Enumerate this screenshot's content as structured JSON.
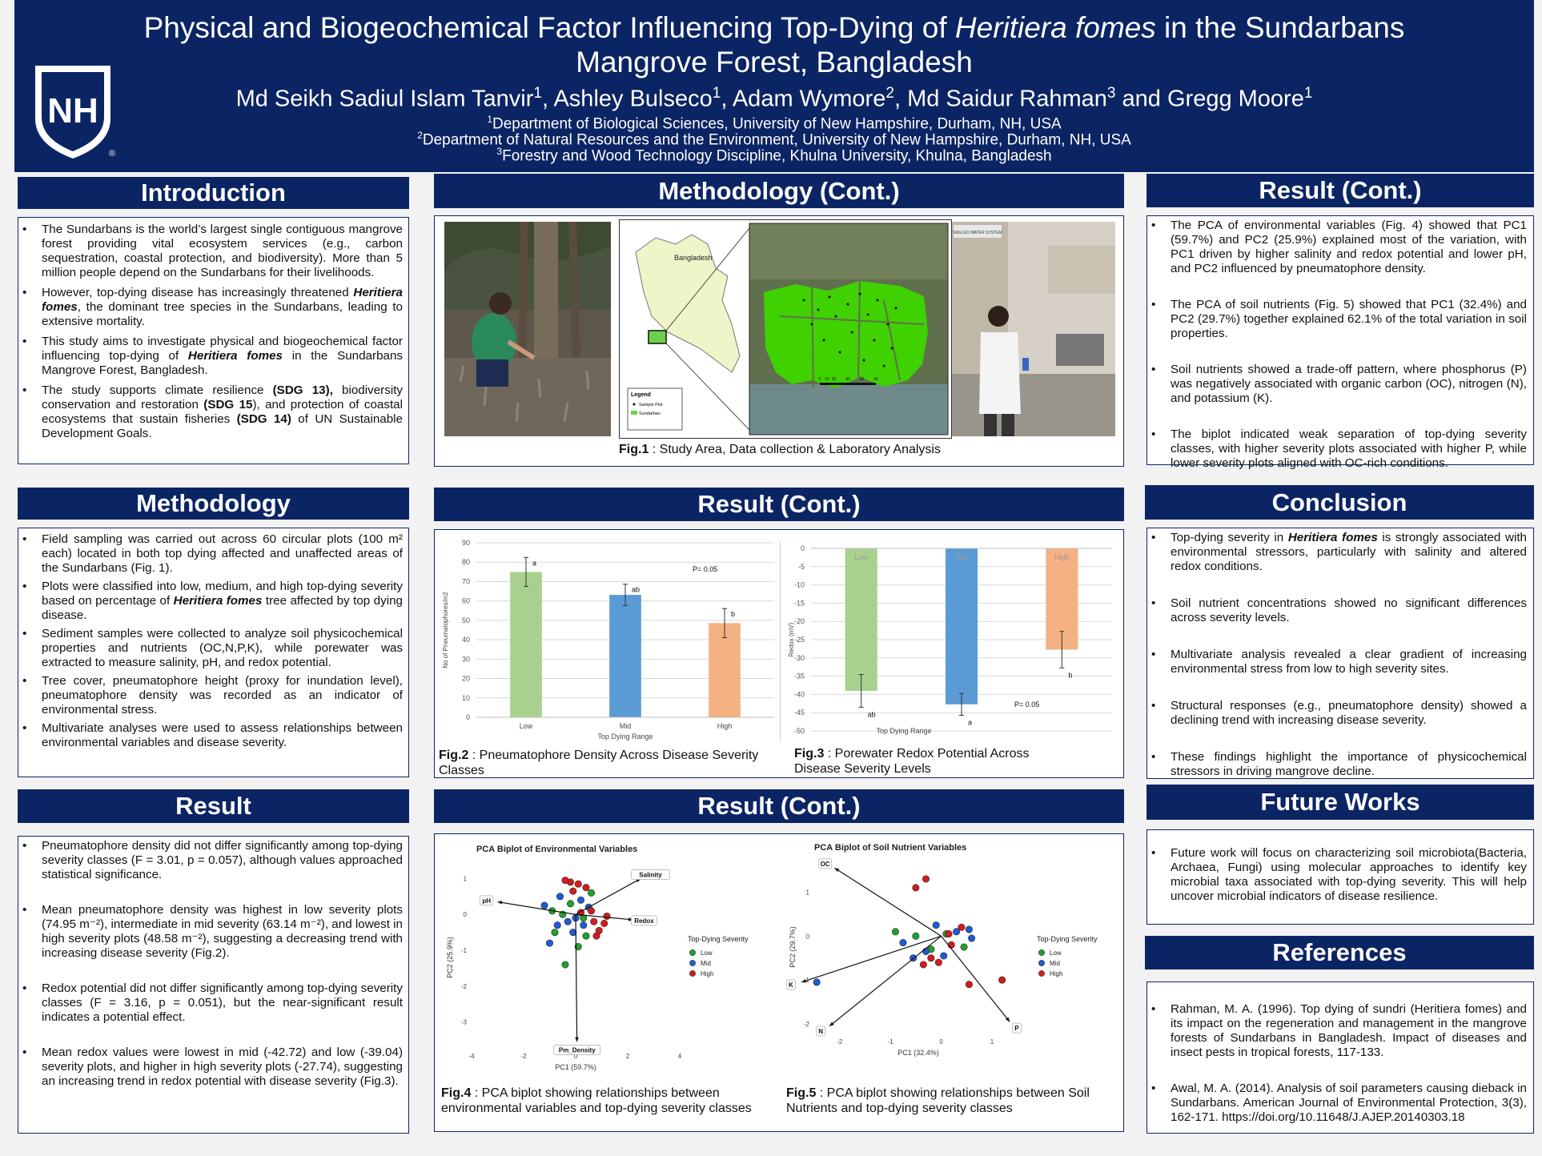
{
  "header": {
    "title_a": "Physical and Biogeochemical Factor Influencing Top-Dying of ",
    "title_italic": "Heritiera fomes",
    "title_b": " in the Sundarbans",
    "title_line2": "Mangrove Forest, Bangladesh",
    "authors": [
      {
        "name": "Md Seikh Sadiul Islam Tanvir",
        "sup": "1",
        "sep": ", "
      },
      {
        "name": "Ashley Bulseco",
        "sup": "1",
        "sep": ", "
      },
      {
        "name": "Adam Wymore",
        "sup": "2",
        "sep": ", "
      },
      {
        "name": "Md Saidur Rahman",
        "sup": "3",
        "sep": " and "
      },
      {
        "name": "Gregg Moore",
        "sup": "1",
        "sep": ""
      }
    ],
    "affiliations": [
      {
        "sup": "1",
        "text": "Department of Biological Sciences, University of New Hampshire, Durham, NH, USA"
      },
      {
        "sup": "2",
        "text": "Department of Natural Resources and the Environment, University of New Hampshire, Durham, NH, USA"
      },
      {
        "sup": "3",
        "text": "Forestry and Wood Technology Discipline, Khulna University, Khulna, Bangladesh"
      }
    ],
    "logo_text": "NH",
    "logo_reg": "®"
  },
  "sections": {
    "introduction": "Introduction",
    "methodology": "Methodology",
    "result": "Result",
    "methodology_cont": "Methodology (Cont.)",
    "result_cont_mid": "Result (Cont.)",
    "result_cont_lower": "Result (Cont.)",
    "result_cont_right": "Result (Cont.)",
    "conclusion": "Conclusion",
    "future_works": "Future Works",
    "references": "References"
  },
  "introduction": [
    [
      {
        "t": "The Sundarbans is the world’s largest single contiguous mangrove forest providing vital ecosystem services (e.g., carbon sequestration, coastal protection, and biodiversity). More than 5 million people depend on the Sundarbans for their livelihoods."
      }
    ],
    [
      {
        "t": "However, top-dying disease has increasingly threatened "
      },
      {
        "t": "Heritiera fomes",
        "bi": true
      },
      {
        "t": ", the dominant tree species in the Sundarbans, leading to extensive mortality."
      }
    ],
    [
      {
        "t": "This study aims to investigate physical and biogeochemical factor influencing top-dying of "
      },
      {
        "t": "Heritiera fomes",
        "bi": true
      },
      {
        "t": " in the Sundarbans Mangrove Forest, Bangladesh."
      }
    ],
    [
      {
        "t": "The study supports climate resilience "
      },
      {
        "t": "(SDG 13),",
        "b": true
      },
      {
        "t": " biodiversity conservation and restoration "
      },
      {
        "t": "(SDG 15",
        "b": true
      },
      {
        "t": "), and protection of coastal ecosystems that sustain fisheries "
      },
      {
        "t": "(SDG 14)",
        "b": true
      },
      {
        "t": " of UN Sustainable Development Goals."
      }
    ]
  ],
  "methodology": [
    [
      {
        "t": "Field sampling was carried out across 60 circular plots (100 m² each) located in both top dying affected and unaffected areas of the Sundarbans (Fig. 1)."
      }
    ],
    [
      {
        "t": "Plots were classified into low, medium, and high top-dying severity based on percentage of "
      },
      {
        "t": "Heritiera fomes",
        "bi": true
      },
      {
        "t": " tree affected by top dying disease."
      }
    ],
    [
      {
        "t": "Sediment samples were collected to analyze soil physicochemical properties and nutrients (OC,N,P,K), while porewater was extracted to measure salinity, pH, and redox potential."
      }
    ],
    [
      {
        "t": "Tree cover, pneumatophore height (proxy for inundation level), pneumatophore density  was recorded as an indicator of environmental stress."
      }
    ],
    [
      {
        "t": "Multivariate analyses were used to assess relationships between environmental variables and disease severity."
      }
    ]
  ],
  "result": [
    [
      {
        "t": "Pneumatophore density did not differ significantly among top-dying severity classes (F = 3.01, p = 0.057), although values approached statistical significance."
      }
    ],
    [
      {
        "t": " Mean pneumatophore density was highest in low severity plots (74.95 m⁻²), intermediate in mid severity (63.14 m⁻²), and lowest in high severity plots (48.58 m⁻²), suggesting a decreasing trend with increasing disease severity (Fig.2)."
      }
    ],
    [
      {
        "t": "Redox potential did not differ significantly among top-dying severity classes (F = 3.16, p = 0.051), but the near-significant result indicates a potential effect."
      }
    ],
    [
      {
        "t": "Mean redox values were lowest in mid (-42.72) and low (-39.04) severity plots, and higher in high severity plots (-27.74), suggesting an increasing trend in redox potential with disease severity (Fig.3)."
      }
    ]
  ],
  "result_right": [
    [
      {
        "t": "The PCA of environmental variables (Fig. 4) showed that PC1 (59.7%) and PC2 (25.9%) explained most of the variation, with PC1 driven by higher salinity and redox potential and lower pH, and PC2 influenced by pneumatophore density."
      }
    ],
    [
      {
        "t": "The PCA of soil nutrients (Fig. 5) showed that PC1 (32.4%) and PC2 (29.7%) together explained 62.1% of the total variation in soil properties."
      }
    ],
    [
      {
        "t": "Soil nutrients showed a trade-off pattern, where phosphorus (P) was negatively associated with organic carbon (OC), nitrogen (N), and potassium (K)."
      }
    ],
    [
      {
        "t": "The biplot indicated weak separation of top-dying severity classes, with higher severity plots associated with higher P, while lower severity plots aligned with OC-rich conditions."
      }
    ]
  ],
  "conclusion": [
    [
      {
        "t": "Top-dying severity in "
      },
      {
        "t": "Heritiera fomes",
        "bi": true
      },
      {
        "t": " is strongly associated with environmental stressors, particularly with salinity and altered redox conditions."
      }
    ],
    [
      {
        "t": "Soil nutrient concentrations showed no significant differences across severity levels."
      }
    ],
    [
      {
        "t": "Multivariate analysis revealed a clear gradient of increasing environmental stress from low to high severity sites."
      }
    ],
    [
      {
        "t": "Structural responses (e.g., pneumatophore density) showed a declining trend with increasing disease severity."
      }
    ],
    [
      {
        "t": "These findings highlight the importance of physicochemical stressors in driving mangrove decline."
      }
    ]
  ],
  "future": [
    [
      {
        "t": "Future work will focus on characterizing soil microbiota(Bacteria, Archaea, Fungi) using molecular approaches to identify key microbial taxa associated with top-dying severity. This will help uncover microbial indicators of disease resilience."
      }
    ]
  ],
  "references": [
    [
      {
        "t": "Rahman, M. A. (1996). Top dying of sundri (Heritiera fomes) and its impact on the regeneration and management in the mangrove forests of Sundarbans in Bangladesh. Impact of diseases and insect pests in tropical forests, 117-133."
      }
    ],
    [
      {
        "t": "Awal, M. A. (2014). Analysis of soil parameters causing dieback in Sundarbans. American Journal of Environmental Protection, 3(3), 162-171. https://doi.org/10.11648/J.AJEP.20140303.18"
      }
    ]
  ],
  "figures": {
    "fig1_label": "Fig.1",
    "fig1_text": " : Study Area, Data collection & Laboratory Analysis",
    "fig2_label": "Fig.2",
    "fig2_text": " : Pneumatophore Density Across Disease Severity Classes",
    "fig3_label": "Fig.3",
    "fig3_text": " : Porewater Redox Potential Across Disease Severity Levels",
    "fig4_label": "Fig.4",
    "fig4_text": " : PCA biplot showing relationships between environmental variables and top-dying severity classes",
    "fig5_label": "Fig.5",
    "fig5_text": " : PCA biplot showing relationships between Soil Nutrients and top-dying severity classes",
    "map": {
      "country": "Bangladesh",
      "legend_title": "Legend",
      "legend_items": [
        "Sample Plot",
        "Sundarban"
      ],
      "scale_ticks": [
        "0",
        "10",
        "20",
        "40",
        "60",
        "80"
      ]
    },
    "photo_sign": "SKILLED WATER SYSTEM"
  },
  "chart_data": [
    {
      "type": "bar",
      "id": "fig2",
      "categories": [
        "Low",
        "Mid",
        "High"
      ],
      "values": [
        74.95,
        63.14,
        48.58
      ],
      "errors": [
        7.5,
        5.5,
        7.5
      ],
      "sig_letters": [
        "a",
        "ab",
        "b"
      ],
      "colors": [
        "#a9d18e",
        "#5b9bd5",
        "#f4b183"
      ],
      "xlabel": "Top Dying Range",
      "ylabel": "No of Pneumatophores/m2",
      "ylim": [
        0,
        90
      ],
      "yticks": [
        0,
        10,
        20,
        30,
        40,
        50,
        60,
        70,
        80,
        90
      ],
      "annotation": "P= 0.05"
    },
    {
      "type": "bar",
      "id": "fig3",
      "categories": [
        "Low",
        "Mid",
        "High"
      ],
      "values": [
        -39.04,
        -42.72,
        -27.74
      ],
      "errors": [
        4.5,
        3.0,
        5.0
      ],
      "sig_letters": [
        "ab",
        "a",
        "b"
      ],
      "colors": [
        "#a9d18e",
        "#5b9bd5",
        "#f4b183"
      ],
      "xlabel": "Top Dying Range",
      "ylabel": "Redox (mV)",
      "ylim": [
        -50,
        0
      ],
      "yticks": [
        0,
        -5,
        -10,
        -15,
        -20,
        -25,
        -30,
        -35,
        -40,
        -45,
        -50
      ],
      "annotation": "P= 0.05"
    },
    {
      "type": "scatter",
      "id": "fig4",
      "title": "PCA Biplot of Environmental Variables",
      "xlabel": "PC1 (59.7%)",
      "ylabel": "PC2 (25.9%)",
      "xlim": [
        -4,
        4
      ],
      "ylim": [
        -3.7,
        1.3
      ],
      "xticks": [
        -4,
        -2,
        0,
        2,
        4
      ],
      "yticks": [
        1,
        0,
        -1,
        -2,
        -3
      ],
      "legend_title": "Top-Dying Severity",
      "legend": [
        "Low",
        "Mid",
        "High"
      ],
      "colors": [
        "#1fa12a",
        "#1f5bd6",
        "#d41c1c"
      ],
      "vectors": [
        {
          "label": "Salinity",
          "x": 2.5,
          "y": 1.0
        },
        {
          "label": "pH",
          "x": -3.0,
          "y": 0.35
        },
        {
          "label": "Redox",
          "x": 2.2,
          "y": -0.15
        },
        {
          "label": "Pm_Density",
          "x": 0.05,
          "y": -3.55
        }
      ],
      "points": [
        {
          "g": "Low",
          "x": -0.5,
          "y": 0.0
        },
        {
          "g": "Low",
          "x": -0.2,
          "y": 0.3
        },
        {
          "g": "Low",
          "x": 0.3,
          "y": -0.1
        },
        {
          "g": "Low",
          "x": -0.8,
          "y": -0.5
        },
        {
          "g": "Low",
          "x": 0.1,
          "y": -0.9
        },
        {
          "g": "Low",
          "x": -0.4,
          "y": -1.4
        },
        {
          "g": "Low",
          "x": 0.6,
          "y": 0.6
        },
        {
          "g": "Low",
          "x": -0.9,
          "y": 0.1
        },
        {
          "g": "Low",
          "x": 0.4,
          "y": -0.6
        },
        {
          "g": "Mid",
          "x": -0.6,
          "y": 0.5
        },
        {
          "g": "Mid",
          "x": 0.2,
          "y": 0.4
        },
        {
          "g": "Mid",
          "x": -0.3,
          "y": -0.2
        },
        {
          "g": "Mid",
          "x": -1.0,
          "y": -0.8
        },
        {
          "g": "Mid",
          "x": 0.5,
          "y": 0.2
        },
        {
          "g": "Mid",
          "x": -0.1,
          "y": -0.5
        },
        {
          "g": "Mid",
          "x": -0.7,
          "y": -0.3
        },
        {
          "g": "Mid",
          "x": 0.0,
          "y": -0.1
        },
        {
          "g": "Mid",
          "x": -1.2,
          "y": 0.25
        },
        {
          "g": "Mid",
          "x": 0.3,
          "y": -0.3
        },
        {
          "g": "High",
          "x": -0.2,
          "y": 0.9
        },
        {
          "g": "High",
          "x": 0.1,
          "y": 0.85
        },
        {
          "g": "High",
          "x": -0.4,
          "y": 0.95
        },
        {
          "g": "High",
          "x": 0.4,
          "y": 0.75
        },
        {
          "g": "High",
          "x": 0.7,
          "y": -0.2
        },
        {
          "g": "High",
          "x": 0.9,
          "y": -0.45
        },
        {
          "g": "High",
          "x": 1.1,
          "y": -0.25
        },
        {
          "g": "High",
          "x": 0.6,
          "y": 0.1
        },
        {
          "g": "High",
          "x": 0.8,
          "y": -0.6
        },
        {
          "g": "High",
          "x": -0.1,
          "y": 0.65
        },
        {
          "g": "High",
          "x": 0.2,
          "y": 0.05
        },
        {
          "g": "High",
          "x": 1.2,
          "y": -0.05
        }
      ]
    },
    {
      "type": "scatter",
      "id": "fig5",
      "title": "PCA Biplot of Soil Nutrient Variables",
      "xlabel": "PC1 (32.4%)",
      "ylabel": "PC2 (29.7%)",
      "xlim": [
        -2.5,
        1.6
      ],
      "ylim": [
        -2.2,
        1.7
      ],
      "xticks": [
        -2,
        -1,
        0,
        1
      ],
      "yticks": [
        1,
        0,
        -1,
        -2
      ],
      "legend_title": "Top-Dying Severity",
      "legend": [
        "Low",
        "Mid",
        "High"
      ],
      "colors": [
        "#1fa12a",
        "#1f5bd6",
        "#d41c1c"
      ],
      "vectors": [
        {
          "label": "OC",
          "x": -2.1,
          "y": 1.55
        },
        {
          "label": "K",
          "x": -2.75,
          "y": -1.05
        },
        {
          "label": "N",
          "x": -2.2,
          "y": -2.05
        },
        {
          "label": "P",
          "x": 1.35,
          "y": -1.95
        }
      ],
      "points": [
        {
          "g": "Low",
          "x": -0.9,
          "y": 0.1
        },
        {
          "g": "Low",
          "x": -0.5,
          "y": 0.0
        },
        {
          "g": "Low",
          "x": 0.45,
          "y": -0.25
        },
        {
          "g": "Low",
          "x": -0.2,
          "y": -0.3
        },
        {
          "g": "Low",
          "x": 0.1,
          "y": 0.05
        },
        {
          "g": "Mid",
          "x": -0.75,
          "y": -0.15
        },
        {
          "g": "Mid",
          "x": -0.3,
          "y": -0.35
        },
        {
          "g": "Mid",
          "x": 0.05,
          "y": -0.45
        },
        {
          "g": "Mid",
          "x": 0.3,
          "y": 0.1
        },
        {
          "g": "Mid",
          "x": 0.55,
          "y": 0.15
        },
        {
          "g": "Mid",
          "x": -0.55,
          "y": -0.5
        },
        {
          "g": "Mid",
          "x": 0.6,
          "y": -0.05
        },
        {
          "g": "Mid",
          "x": -0.1,
          "y": 0.25
        },
        {
          "g": "Mid",
          "x": -2.45,
          "y": -1.05
        },
        {
          "g": "High",
          "x": -0.3,
          "y": 1.3
        },
        {
          "g": "High",
          "x": -0.5,
          "y": 1.1
        },
        {
          "g": "High",
          "x": 0.4,
          "y": 0.2
        },
        {
          "g": "High",
          "x": -0.05,
          "y": -0.6
        },
        {
          "g": "High",
          "x": 0.2,
          "y": -0.2
        },
        {
          "g": "High",
          "x": -0.2,
          "y": -0.5
        },
        {
          "g": "High",
          "x": 0.55,
          "y": -1.1
        },
        {
          "g": "High",
          "x": 1.2,
          "y": -1.0
        },
        {
          "g": "High",
          "x": 0.15,
          "y": 0.05
        },
        {
          "g": "High",
          "x": -0.35,
          "y": -0.65
        }
      ]
    }
  ]
}
